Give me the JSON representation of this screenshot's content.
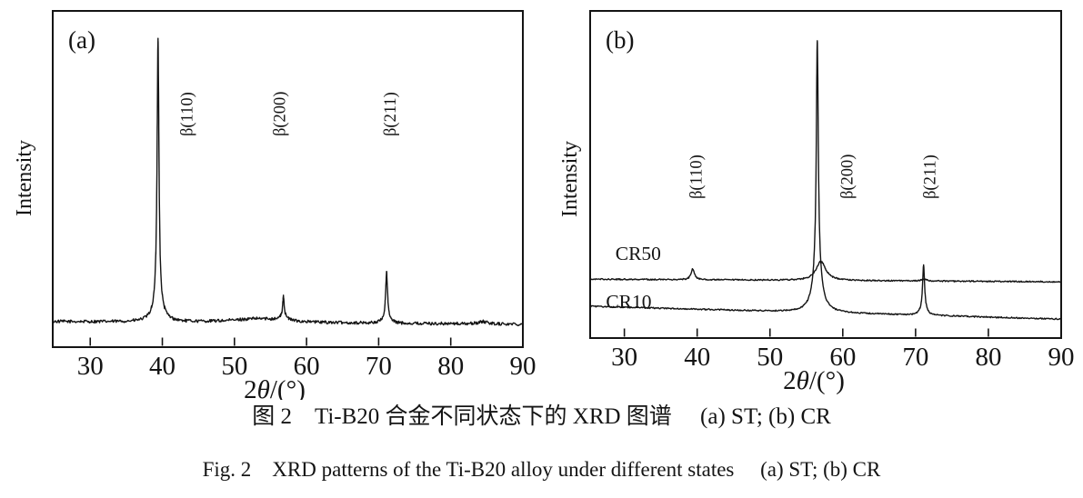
{
  "figure": {
    "caption_zh": "图 2　Ti-B20 合金不同状态下的 XRD 图谱　 (a) ST; (b) CR",
    "caption_en": "Fig. 2　XRD patterns of the Ti-B20 alloy under different states　 (a) ST; (b) CR"
  },
  "chart_data": [
    {
      "type": "line",
      "panel_label": "(a)",
      "xlabel": "2θ/(°)",
      "ylabel": "Intensity",
      "xlim": [
        24.8,
        90
      ],
      "xticks": [
        30,
        40,
        50,
        60,
        70,
        80,
        90
      ],
      "yticks": [],
      "grid": false,
      "legend_position": "none",
      "annotation_baseline_frac": 0.627,
      "annotations": [
        {
          "label": "β(110)",
          "x": 43.5
        },
        {
          "label": "β(200)",
          "x": 56.4
        },
        {
          "label": "β(211)",
          "x": 71.7
        }
      ],
      "series": [
        {
          "name": "ST",
          "name_visible": false,
          "baseline": [
            0.076,
            0.068
          ],
          "noise": 0.0045,
          "peaks": [
            {
              "x": 39.4,
              "height": 0.785,
              "fwhm": 0.3
            },
            {
              "x": 39.4,
              "height": 0.055,
              "fwhm": 1.5
            },
            {
              "x": 53.5,
              "height": 0.012,
              "fwhm": 9.0
            },
            {
              "x": 56.8,
              "height": 0.06,
              "fwhm": 0.25
            },
            {
              "x": 56.8,
              "height": 0.012,
              "fwhm": 1.2
            },
            {
              "x": 71.1,
              "height": 0.133,
              "fwhm": 0.3
            },
            {
              "x": 71.1,
              "height": 0.018,
              "fwhm": 1.0
            },
            {
              "x": 84.5,
              "height": 0.007,
              "fwhm": 1.5
            }
          ]
        }
      ]
    },
    {
      "type": "line",
      "panel_label": "(b)",
      "xlabel": "2θ/(°)",
      "ylabel": "Intensity",
      "xlim": [
        25.3,
        90
      ],
      "xticks": [
        30,
        40,
        50,
        60,
        70,
        80,
        90
      ],
      "yticks": [],
      "grid": false,
      "legend_position": "inline-left",
      "annotation_baseline_frac": 0.425,
      "annotations": [
        {
          "label": "β(110)",
          "x": 40.0
        },
        {
          "label": "β(200)",
          "x": 60.7
        },
        {
          "label": "β(211)",
          "x": 72.1
        }
      ],
      "series": [
        {
          "name": "CR50",
          "name_visible": true,
          "name_pos": {
            "x": 31.9,
            "y_frac": 0.239
          },
          "baseline": [
            0.18,
            0.172
          ],
          "noise": 0.002,
          "peaks": [
            {
              "x": 39.4,
              "height": 0.033,
              "fwhm": 0.55
            },
            {
              "x": 57.0,
              "height": 0.058,
              "fwhm": 1.6
            },
            {
              "x": 71.2,
              "height": 0.006,
              "fwhm": 0.8
            }
          ]
        },
        {
          "name": "CR10",
          "name_visible": true,
          "name_pos": {
            "x": 30.6,
            "y_frac": 0.092
          },
          "baseline": [
            0.097,
            0.058
          ],
          "noise": 0.002,
          "peaks": [
            {
              "x": 56.5,
              "height": 0.705,
              "fwhm": 0.32
            },
            {
              "x": 56.5,
              "height": 0.125,
              "fwhm": 1.4
            },
            {
              "x": 71.1,
              "height": 0.135,
              "fwhm": 0.32
            },
            {
              "x": 71.1,
              "height": 0.018,
              "fwhm": 1.0
            }
          ]
        }
      ]
    }
  ]
}
